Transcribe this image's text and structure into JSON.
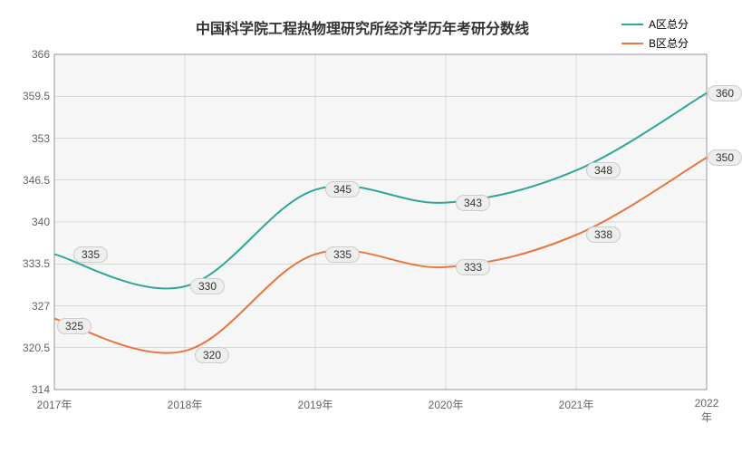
{
  "chart": {
    "type": "line",
    "title": "中国科学院工程热物理研究所经济学历年考研分数线",
    "title_fontsize": 16,
    "title_color": "#333333",
    "background_color": "#ffffff",
    "plot_background": "#f6f6f6",
    "border_color": "#969696",
    "grid_color": "#bcbcbc",
    "x": {
      "categories": [
        "2017年",
        "2018年",
        "2019年",
        "2020年",
        "2021年",
        "2022年"
      ],
      "label_fontsize": 12,
      "label_color": "#646464"
    },
    "y": {
      "min": 314,
      "max": 366,
      "tick_step": 6.5,
      "ticks": [
        314,
        320.5,
        327,
        333.5,
        340,
        346.5,
        353,
        359.5,
        366
      ],
      "label_fontsize": 12,
      "label_color": "#646464"
    },
    "series": [
      {
        "name": "A区总分",
        "color": "#2fa59a",
        "line_width": 2,
        "smooth": true,
        "values": [
          335,
          330,
          345,
          343,
          348,
          360
        ]
      },
      {
        "name": "B区总分",
        "color": "#e9763e",
        "line_width": 2,
        "smooth": true,
        "values": [
          325,
          320,
          335,
          333,
          338,
          350
        ]
      }
    ],
    "label_offsets": {
      "0": [
        [
          40,
          0
        ],
        [
          25,
          0
        ],
        [
          30,
          0
        ],
        [
          30,
          0
        ],
        [
          30,
          0
        ],
        [
          20,
          0
        ]
      ],
      "1": [
        [
          22,
          8
        ],
        [
          30,
          5
        ],
        [
          30,
          0
        ],
        [
          30,
          0
        ],
        [
          30,
          0
        ],
        [
          20,
          0
        ]
      ]
    },
    "data_label": {
      "fontsize": 12,
      "bg": "#eeeeee",
      "border": "#cccccc",
      "color": "#333333",
      "radius": 10
    },
    "legend": {
      "position": "top-right",
      "fontsize": 12
    }
  }
}
